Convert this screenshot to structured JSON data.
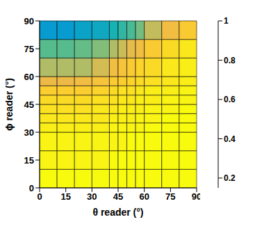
{
  "chart_data": {
    "type": "heatmap",
    "x_label": "θ reader (°)",
    "y_label": "ϕ reader (°)",
    "xlim": [
      0,
      90
    ],
    "ylim": [
      0,
      90
    ],
    "xticks": [
      0,
      15,
      30,
      45,
      60,
      75,
      90
    ],
    "yticks": [
      0,
      15,
      30,
      45,
      60,
      75,
      90
    ],
    "x_edges": [
      0,
      10,
      20,
      30,
      40,
      45,
      50,
      55,
      60,
      70,
      80,
      90
    ],
    "y_edges": [
      0,
      10,
      20,
      30,
      35,
      40,
      45,
      50,
      55,
      60,
      70,
      80,
      90
    ],
    "cells": [
      [
        1,
        1,
        1,
        1,
        1,
        1,
        1,
        1,
        1,
        1,
        1
      ],
      [
        0.99,
        0.99,
        0.99,
        0.99,
        1,
        1,
        1,
        1,
        1,
        1,
        1
      ],
      [
        0.99,
        0.99,
        0.99,
        0.99,
        0.99,
        0.99,
        1,
        1,
        1,
        1,
        1
      ],
      [
        0.98,
        0.98,
        0.98,
        0.98,
        0.99,
        0.99,
        0.99,
        0.99,
        1,
        1,
        1
      ],
      [
        0.97,
        0.97,
        0.97,
        0.97,
        0.98,
        0.98,
        0.98,
        0.99,
        0.99,
        1,
        1
      ],
      [
        0.96,
        0.96,
        0.96,
        0.97,
        0.97,
        0.98,
        0.98,
        0.98,
        0.99,
        0.99,
        1
      ],
      [
        0.95,
        0.95,
        0.95,
        0.96,
        0.96,
        0.97,
        0.97,
        0.98,
        0.98,
        0.99,
        0.99
      ],
      [
        0.93,
        0.93,
        0.93,
        0.94,
        0.95,
        0.96,
        0.96,
        0.97,
        0.98,
        0.98,
        0.99
      ],
      [
        0.87,
        0.87,
        0.88,
        0.9,
        0.92,
        0.93,
        0.94,
        0.95,
        0.96,
        0.97,
        0.98
      ],
      [
        0.8,
        0.8,
        0.8,
        0.84,
        0.88,
        0.9,
        0.92,
        0.94,
        0.95,
        0.97,
        0.98
      ],
      [
        0.68,
        0.68,
        0.7,
        0.74,
        0.8,
        0.83,
        0.86,
        0.88,
        0.92,
        0.95,
        0.97
      ],
      [
        0.47,
        0.47,
        0.5,
        0.53,
        0.58,
        0.62,
        0.66,
        0.72,
        0.82,
        0.88,
        0.92
      ]
    ],
    "colorbar_range": [
      0.15,
      1
    ],
    "colorbar_ticks": [
      0.2,
      0.4,
      0.6,
      0.8,
      1
    ]
  }
}
